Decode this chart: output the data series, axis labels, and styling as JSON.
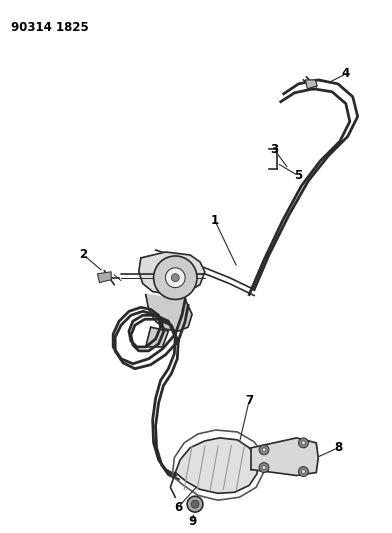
{
  "title": "90314 1825",
  "bg_color": "#ffffff",
  "line_color": "#2a2a2a",
  "label_color": "#000000",
  "label_fontsize": 8.5
}
